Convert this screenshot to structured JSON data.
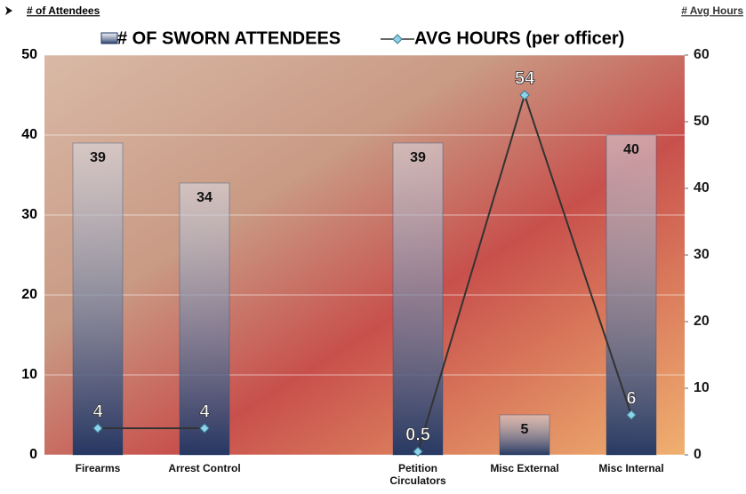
{
  "chart_data": {
    "type": "combo",
    "ylabel": "# of Attendees",
    "y2label": "# Avg Hours",
    "categories": [
      "Firearms",
      "Arrest Control",
      null,
      "Petition Circulators",
      "Misc External",
      "Misc Internal"
    ],
    "series": [
      {
        "name": "# OF SWORN ATTENDEES",
        "type": "bar",
        "color": "#2e4a7a",
        "values": [
          39,
          34,
          null,
          39,
          5,
          40
        ]
      },
      {
        "name": "AVG HOURS (per officer)",
        "type": "line",
        "axis": "y2",
        "color": "#333333",
        "marker_color": "#8fd3ea",
        "values": [
          4,
          4,
          null,
          0.5,
          54,
          6
        ]
      }
    ],
    "ylim": [
      0,
      50
    ],
    "yticks": [
      0,
      10,
      20,
      30,
      40,
      50
    ],
    "y2lim": [
      0,
      60
    ],
    "y2ticks": [
      0,
      10,
      20,
      30,
      40,
      50,
      60
    ],
    "grid": true,
    "legend": "top"
  }
}
